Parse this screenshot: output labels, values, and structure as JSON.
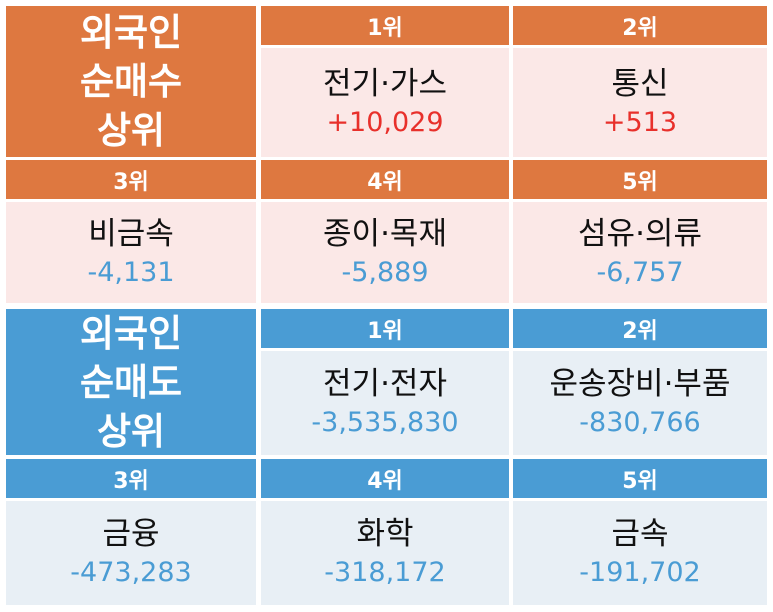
{
  "buy": {
    "title": [
      "외국인",
      "순매수",
      "상위"
    ],
    "ranks": [
      {
        "rank": "1위",
        "name": "전기·가스",
        "value": "+10,029"
      },
      {
        "rank": "2위",
        "name": "통신",
        "value": "+513"
      },
      {
        "rank": "3위",
        "name": "비금속",
        "value": "-4,131"
      },
      {
        "rank": "4위",
        "name": "종이·목재",
        "value": "-5,889"
      },
      {
        "rank": "5위",
        "name": "섬유·의류",
        "value": "-6,757"
      }
    ],
    "colors": {
      "header": "#de7840",
      "body": "#fbe8e7",
      "positive": "#e8302b",
      "negative": "#4a9cd4"
    }
  },
  "sell": {
    "title": [
      "외국인",
      "순매도",
      "상위"
    ],
    "ranks": [
      {
        "rank": "1위",
        "name": "전기·전자",
        "value": "-3,535,830"
      },
      {
        "rank": "2위",
        "name": "운송장비·부품",
        "value": "-830,766"
      },
      {
        "rank": "3위",
        "name": "금융",
        "value": "-473,283"
      },
      {
        "rank": "4위",
        "name": "화학",
        "value": "-318,172"
      },
      {
        "rank": "5위",
        "name": "금속",
        "value": "-191,702"
      }
    ],
    "colors": {
      "header": "#4a9cd4",
      "body": "#e8eff5",
      "value": "#4a9cd4"
    }
  }
}
